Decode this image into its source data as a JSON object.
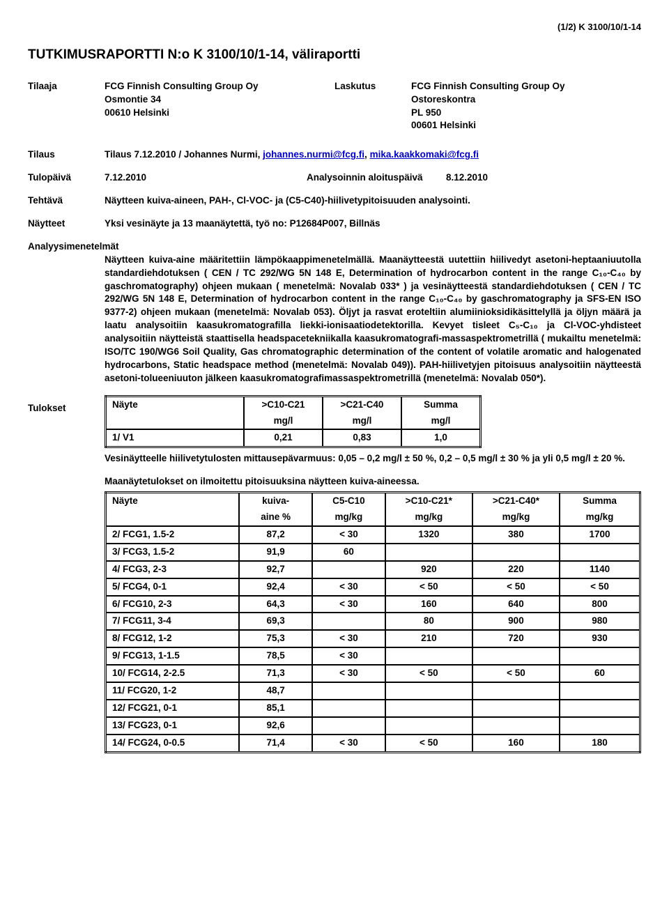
{
  "topright": "(1/2) K 3100/10/1-14",
  "title": "TUTKIMUSRAPORTTI N:o K 3100/10/1-14, väliraportti",
  "left_block": {
    "tilaaja_label": "Tilaaja",
    "tilaaja_lines": [
      "FCG Finnish Consulting Group Oy",
      "Osmontie 34",
      "00610 Helsinki"
    ]
  },
  "right_block": {
    "laskutus_label": "Laskutus",
    "laskutus_lines": [
      "FCG Finnish Consulting Group Oy",
      "Ostoreskontra",
      "PL 950",
      "00601 Helsinki"
    ]
  },
  "tilaus": {
    "label": "Tilaus",
    "text_pre": "Tilaus 7.12.2010 / Johannes Nurmi, ",
    "link1": "johannes.nurmi@fcg.fi",
    "sep": ", ",
    "link2": "mika.kaakkomaki@fcg.fi"
  },
  "tulopaiva": {
    "label": "Tulopäivä",
    "value": "7.12.2010",
    "label2": "Analysoinnin aloituspäivä",
    "value2": "8.12.2010"
  },
  "tehtava": {
    "label": "Tehtävä",
    "text": "Näytteen kuiva-aineen, PAH-, Cl-VOC- ja (C5-C40)-hiilivetypitoisuuden analysointi."
  },
  "naytteet": {
    "label": "Näytteet",
    "text": "Yksi vesinäyte ja 13 maanäytettä, työ no: P12684P007, Billnäs"
  },
  "analyysimenetelmat": {
    "label": "Analyysimenetelmät",
    "text": "Näytteen kuiva-aine määritettiin lämpökaappimenetelmällä. Maanäytteestä uutettiin hiilivedyt asetoni-heptaaniuutolla standardiehdotuksen ( CEN / TC 292/WG 5N 148 E, Determination of hydrocarbon content in the range C₁₀-C₄₀ by gaschromatography) ohjeen mukaan ( menetelmä: Novalab 033* ) ja vesinäytteestä standardiehdotuksen ( CEN / TC 292/WG 5N 148 E, Determination of hydrocarbon content in the range C₁₀-C₄₀ by gaschromatography ja SFS-EN ISO 9377-2) ohjeen mukaan (menetelmä: Novalab 053). Öljyt ja rasvat eroteltiin alumiinioksidikäsittelyllä ja öljyn määrä ja laatu analysoitiin kaasukromatografilla liekki-ionisaatiodetektorilla. Kevyet tisleet C₅-C₁₀ ja Cl-VOC-yhdisteet analysoitiin näytteistä staattisella headspacetekniikalla kaasukromatografi-massaspektrometrillä ( mukailtu menetelmä: ISO/TC 190/WG6 Soil Quality, Gas chromatographic determination of the content of volatile aromatic and halogenated hydrocarbons, Static headspace method (menetelmä: Novalab 049)). PAH-hiilivetyjen pitoisuus analysoitiin näytteestä asetoni-tolueeniuuton jälkeen kaasukromatografimassaspektrometrillä (menetelmä: Novalab 050*)."
  },
  "tulokset": {
    "label": "Tulokset",
    "table1": {
      "headers": [
        [
          "Näyte",
          ">C10-C21",
          ">C21-C40",
          "Summa"
        ],
        [
          "",
          "mg/l",
          "mg/l",
          "mg/l"
        ]
      ],
      "rows": [
        [
          "1/ V1",
          "0,21",
          "0,83",
          "1,0"
        ]
      ]
    },
    "note1": "Vesinäytteelle hiilivetytulosten mittausepävarmuus: 0,05 – 0,2 mg/l ± 50 %, 0,2 – 0,5 mg/l ± 30 % ja yli 0,5 mg/l ± 20 %.",
    "note2": "Maanäytetulokset on ilmoitettu pitoisuuksina näytteen kuiva-aineessa.",
    "table2": {
      "headers": [
        [
          "Näyte",
          "kuiva-",
          "C5-C10",
          ">C10-C21*",
          ">C21-C40*",
          "Summa"
        ],
        [
          "",
          "aine %",
          "mg/kg",
          "mg/kg",
          "mg/kg",
          "mg/kg"
        ]
      ],
      "rows": [
        [
          "2/ FCG1, 1.5-2",
          "87,2",
          "< 30",
          "1320",
          "380",
          "1700"
        ],
        [
          "3/ FCG3, 1.5-2",
          "91,9",
          "60",
          "",
          "",
          ""
        ],
        [
          "4/ FCG3, 2-3",
          "92,7",
          "",
          "920",
          "220",
          "1140"
        ],
        [
          "5/ FCG4, 0-1",
          "92,4",
          "< 30",
          "< 50",
          "< 50",
          "< 50"
        ],
        [
          "6/ FCG10, 2-3",
          "64,3",
          "< 30",
          "160",
          "640",
          "800"
        ],
        [
          "7/ FCG11, 3-4",
          "69,3",
          "",
          "80",
          "900",
          "980"
        ],
        [
          "8/ FCG12, 1-2",
          "75,3",
          "< 30",
          "210",
          "720",
          "930"
        ],
        [
          "9/ FCG13, 1-1.5",
          "78,5",
          "< 30",
          "",
          "",
          ""
        ],
        [
          "10/ FCG14, 2-2.5",
          "71,3",
          "< 30",
          "< 50",
          "< 50",
          "60"
        ],
        [
          "11/ FCG20, 1-2",
          "48,7",
          "",
          "",
          "",
          ""
        ],
        [
          "12/ FCG21, 0-1",
          "85,1",
          "",
          "",
          "",
          ""
        ],
        [
          "13/ FCG23, 0-1",
          "92,6",
          "",
          "",
          "",
          ""
        ],
        [
          "14/ FCG24, 0-0.5",
          "71,4",
          "< 30",
          "< 50",
          "160",
          "180"
        ]
      ]
    },
    "col_widths_t1": [
      "180px",
      "95px",
      "95px",
      "95px"
    ],
    "col_widths_t2": [
      "170px",
      "85px",
      "85px",
      "105px",
      "105px",
      "95px"
    ]
  }
}
